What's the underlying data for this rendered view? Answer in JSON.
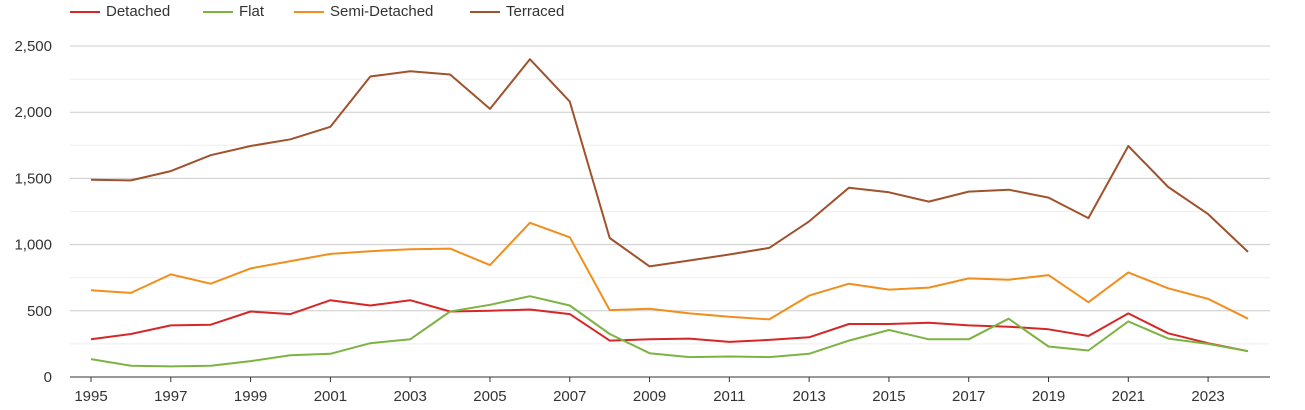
{
  "chart_data": {
    "type": "line",
    "title": "",
    "xlabel": "",
    "ylabel": "",
    "x": [
      1995,
      1996,
      1997,
      1998,
      1999,
      2000,
      2001,
      2002,
      2003,
      2004,
      2005,
      2006,
      2007,
      2008,
      2009,
      2010,
      2011,
      2012,
      2013,
      2014,
      2015,
      2016,
      2017,
      2018,
      2019,
      2020,
      2021,
      2022,
      2023,
      2024
    ],
    "x_ticks": [
      "1995",
      "1997",
      "1999",
      "2001",
      "2003",
      "2005",
      "2007",
      "2009",
      "2011",
      "2013",
      "2015",
      "2017",
      "2019",
      "2021",
      "2023"
    ],
    "ylim": [
      0,
      2500
    ],
    "y_ticks": [
      {
        "value": 0,
        "label": "0"
      },
      {
        "value": 500,
        "label": "500"
      },
      {
        "value": 1000,
        "label": "1,000"
      },
      {
        "value": 1500,
        "label": "1,500"
      },
      {
        "value": 2000,
        "label": "2,000"
      },
      {
        "value": 2500,
        "label": "2,500"
      }
    ],
    "grid": true,
    "legend_position": "top-left",
    "series": [
      {
        "name": "Detached",
        "color": "#d62728",
        "values": [
          285,
          325,
          390,
          395,
          495,
          475,
          580,
          540,
          580,
          495,
          500,
          510,
          475,
          275,
          285,
          290,
          265,
          280,
          300,
          400,
          400,
          410,
          390,
          380,
          360,
          310,
          480,
          330,
          255,
          195
        ]
      },
      {
        "name": "Flat",
        "color": "#7cb342",
        "values": [
          135,
          85,
          80,
          85,
          120,
          165,
          175,
          255,
          285,
          495,
          545,
          610,
          540,
          325,
          180,
          150,
          155,
          150,
          175,
          275,
          355,
          285,
          285,
          440,
          230,
          200,
          420,
          290,
          250,
          195
        ]
      },
      {
        "name": "Semi-Detached",
        "color": "#f28e1c",
        "values": [
          655,
          635,
          775,
          705,
          820,
          875,
          930,
          950,
          965,
          970,
          845,
          1165,
          1055,
          505,
          515,
          480,
          455,
          435,
          615,
          705,
          660,
          675,
          745,
          735,
          770,
          565,
          790,
          670,
          590,
          440
        ]
      },
      {
        "name": "Terraced",
        "color": "#a0522d",
        "values": [
          1490,
          1485,
          1555,
          1675,
          1745,
          1795,
          1890,
          2270,
          2310,
          2285,
          2025,
          2400,
          2080,
          1050,
          835,
          880,
          925,
          975,
          1175,
          1430,
          1395,
          1325,
          1400,
          1415,
          1355,
          1200,
          1745,
          1435,
          1230,
          945
        ]
      }
    ]
  }
}
